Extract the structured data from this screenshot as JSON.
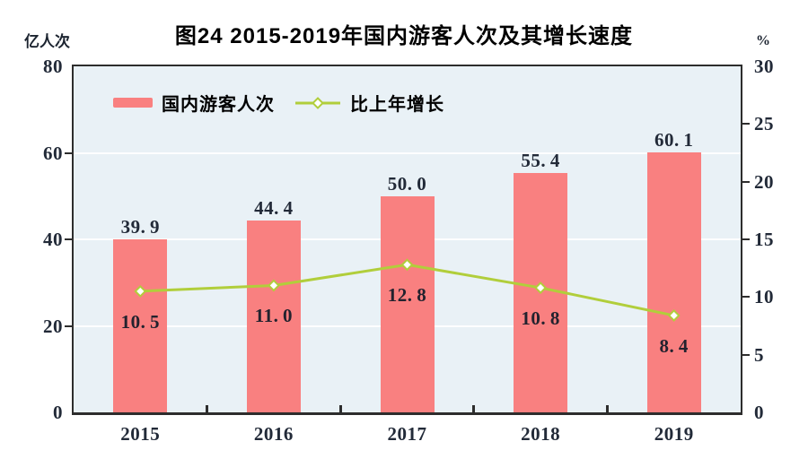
{
  "title": "图24  2015-2019年国内游客人次及其增长速度",
  "axes": {
    "left_unit": "亿人次",
    "right_unit": "%"
  },
  "colors": {
    "bar": "#f98080",
    "line": "#b1ce3b",
    "marker_fill": "#ffffff",
    "plot_bg": "#e9f1f6",
    "grid": "#ffffff",
    "axis": "#2d2d2d",
    "number_text": "#222a38",
    "title_text": "#000000"
  },
  "chart_data": {
    "type": "bar",
    "title": "图24  2015-2019年国内游客人次及其增长速度",
    "categories": [
      "2015",
      "2016",
      "2017",
      "2018",
      "2019"
    ],
    "series": [
      {
        "name": "国内游客人次",
        "type": "bar",
        "axis": "left",
        "values": [
          39.9,
          44.4,
          50.0,
          55.4,
          60.1
        ]
      },
      {
        "name": "比上年增长",
        "type": "line",
        "axis": "right",
        "values": [
          10.5,
          11.0,
          12.8,
          10.8,
          8.4
        ]
      }
    ],
    "left_axis": {
      "unit": "亿人次",
      "min": 0,
      "max": 80,
      "ticks": [
        0,
        20,
        40,
        60,
        80
      ],
      "gridline_ticks": [
        20,
        40,
        60
      ]
    },
    "right_axis": {
      "unit": "%",
      "min": 0,
      "max": 30,
      "ticks": [
        0,
        5,
        10,
        15,
        20,
        25,
        30
      ],
      "tick_mark_ticks": [
        5,
        10,
        15,
        20,
        25
      ]
    },
    "value_label_decimals": 1,
    "grid": "horizontal-only",
    "legend_position": "inside-top-left"
  }
}
